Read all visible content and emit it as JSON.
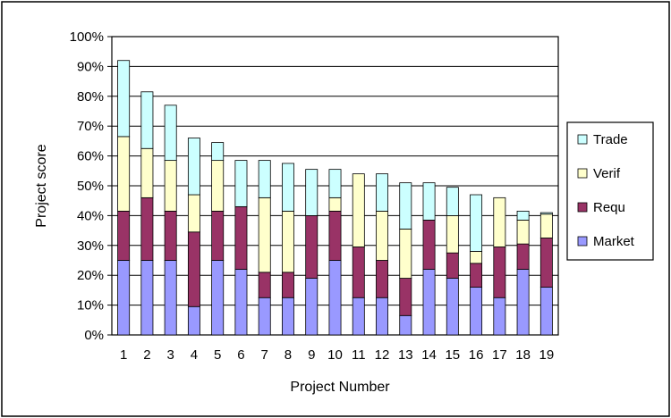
{
  "chart_data": {
    "type": "bar",
    "stacked": true,
    "title": "",
    "xlabel": "Project Number",
    "ylabel": "Project score",
    "ylim": [
      0,
      100
    ],
    "y_tick_format": "percent",
    "y_ticks": [
      "0%",
      "10%",
      "20%",
      "30%",
      "40%",
      "50%",
      "60%",
      "70%",
      "80%",
      "90%",
      "100%"
    ],
    "categories": [
      "1",
      "2",
      "3",
      "4",
      "5",
      "6",
      "7",
      "8",
      "9",
      "10",
      "11",
      "12",
      "13",
      "14",
      "15",
      "16",
      "17",
      "18",
      "19"
    ],
    "grid": "horizontal",
    "legend_position": "right",
    "series": [
      {
        "name": "Market",
        "color": "#9999ff",
        "values": [
          25,
          25,
          25,
          9.5,
          25,
          22,
          12.5,
          12.5,
          19,
          25,
          12.5,
          12.5,
          6.5,
          22,
          19,
          16,
          12.5,
          22,
          16
        ]
      },
      {
        "name": "Requ",
        "color": "#993366",
        "values": [
          16.5,
          21,
          16.5,
          25,
          16.5,
          21,
          8.5,
          8.5,
          21,
          16.5,
          17,
          12.5,
          12.5,
          16.5,
          8.5,
          8,
          17,
          8.5,
          16.5
        ]
      },
      {
        "name": "Verif",
        "color": "#ffffcc",
        "values": [
          25,
          16.5,
          17,
          12.5,
          17,
          0,
          25,
          20.5,
          0,
          4.5,
          24.5,
          16.5,
          16.5,
          0,
          12.5,
          4,
          16.5,
          8,
          8
        ]
      },
      {
        "name": "Trade",
        "color": "#ccffff",
        "values": [
          25.5,
          19,
          18.5,
          19,
          6,
          15.5,
          12.5,
          16,
          15.5,
          9.5,
          0,
          12.5,
          15.5,
          12.5,
          9.5,
          19,
          0,
          3,
          0.5
        ]
      }
    ],
    "legend_order": [
      "Trade",
      "Verif",
      "Requ",
      "Market"
    ]
  }
}
